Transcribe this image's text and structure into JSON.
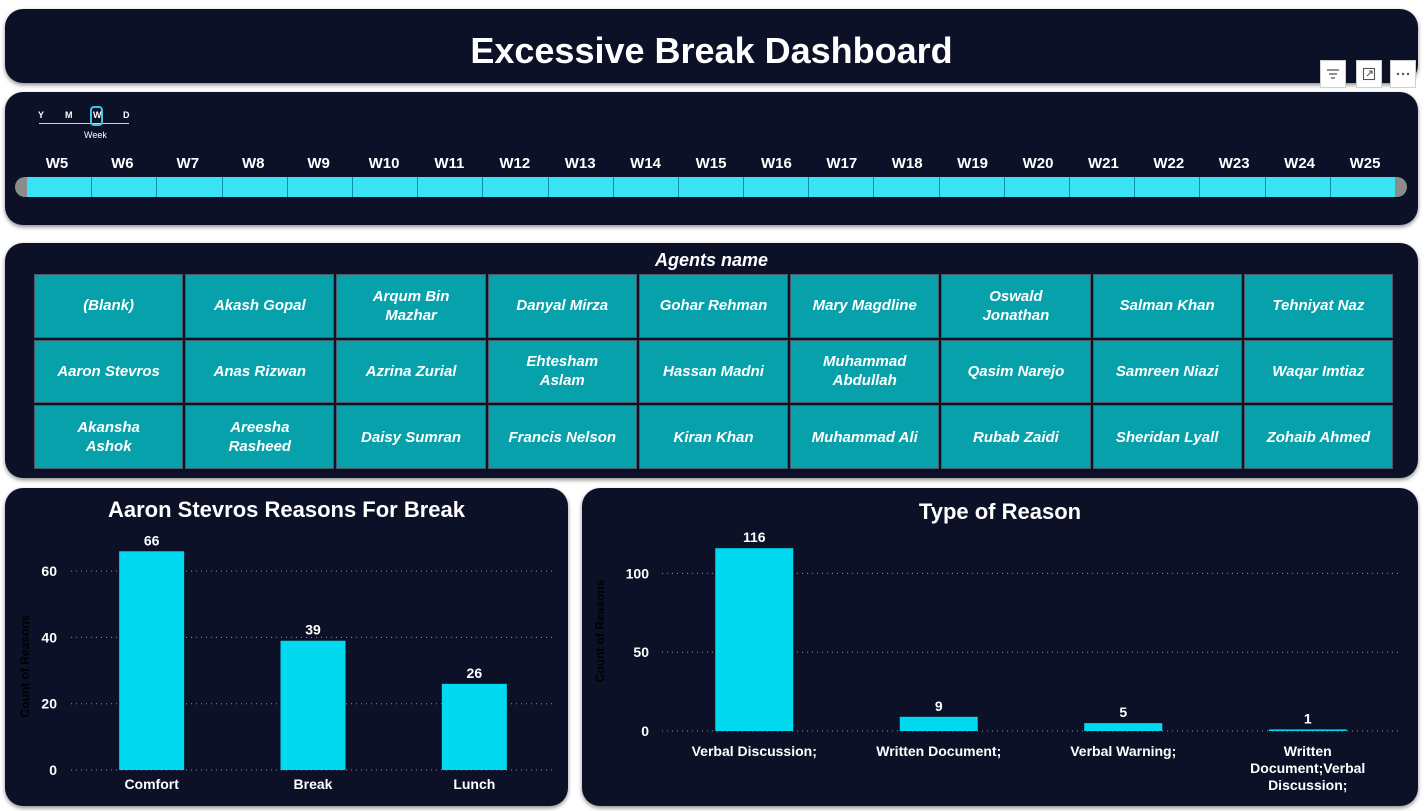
{
  "header": {
    "title": "Excessive Break Dashboard"
  },
  "visual_header": {
    "icons": [
      "filter-icon",
      "focus-mode-icon",
      "more-options-icon"
    ]
  },
  "slicer": {
    "hierarchy": [
      "Y",
      "M",
      "W",
      "D"
    ],
    "selected_level": "Week",
    "weeks": [
      "W5",
      "W6",
      "W7",
      "W8",
      "W9",
      "W10",
      "W11",
      "W12",
      "W13",
      "W14",
      "W15",
      "W16",
      "W17",
      "W18",
      "W19",
      "W20",
      "W21",
      "W22",
      "W23",
      "W24",
      "W25"
    ]
  },
  "agents": {
    "title": "Agents name",
    "names": [
      "(Blank)",
      "Akash Gopal",
      "Arqum Bin Mazhar",
      "Danyal Mirza",
      "Gohar Rehman",
      "Mary Magdline",
      "Oswald Jonathan",
      "Salman Khan",
      "Tehniyat Naz",
      "Aaron Stevros",
      "Anas Rizwan",
      "Azrina Zurial",
      "Ehtesham Aslam",
      "Hassan Madni",
      "Muhammad Abdullah",
      "Qasim Narejo",
      "Samreen Niazi",
      "Waqar Imtiaz",
      "Akansha Ashok",
      "Areesha Rasheed",
      "Daisy Sumran",
      "Francis Nelson",
      "Kiran Khan",
      "Muhammad Ali",
      "Rubab Zaidi",
      "Sheridan Lyall",
      "Zohaib Ahmed"
    ]
  },
  "colors": {
    "panel_bg": "#0c1127",
    "bar": "#00d9ef",
    "tile": "#07a1ab",
    "accent": "#39e3f4"
  },
  "chart_data": [
    {
      "type": "bar",
      "title": "Aaron Stevros Reasons For Break",
      "categories": [
        "Comfort",
        "Break",
        "Lunch"
      ],
      "values": [
        66,
        39,
        26
      ],
      "ylabel": "Count of Reasons",
      "xlabel": "",
      "yticks": [
        0,
        20,
        40,
        60
      ],
      "ylim": [
        0,
        70
      ],
      "grid": true
    },
    {
      "type": "bar",
      "title": "Type of Reason",
      "categories": [
        "Verbal Discussion;",
        "Written Document;",
        "Verbal Warning;",
        "Written Document;Verbal Discussion;"
      ],
      "values": [
        116,
        9,
        5,
        1
      ],
      "ylabel": "Count of Reasons",
      "xlabel": "",
      "yticks": [
        0,
        50,
        100
      ],
      "ylim": [
        0,
        125
      ],
      "grid": true
    }
  ]
}
